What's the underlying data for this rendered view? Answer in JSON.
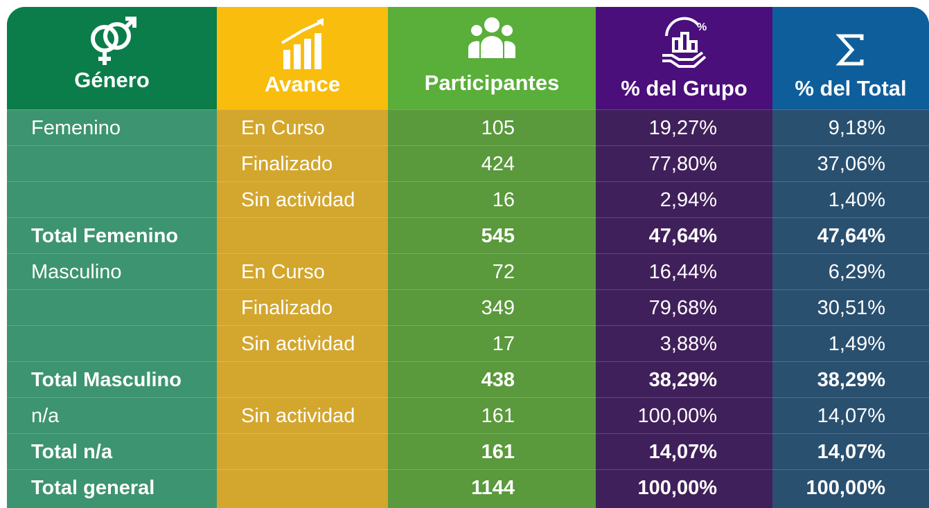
{
  "table": {
    "header": [
      "Género",
      "Avance",
      "Participantes",
      "% del Grupo",
      "% del Total"
    ],
    "rows": [
      {
        "genero": "Femenino",
        "avance": "En Curso",
        "participantes": 105,
        "grupo": "19,27%",
        "total": "9,18%"
      },
      {
        "avance": "Finalizado",
        "participantes": 424,
        "grupo": "77,80%",
        "total": "37,06%"
      },
      {
        "avance": "Sin actividad",
        "participantes": 16,
        "grupo": "2,94%",
        "total": "1,40%"
      },
      {
        "genero": "Total Femenino",
        "participantes": 545,
        "grupo": "47,64%",
        "total": "47,64%"
      },
      {
        "genero": "Masculino",
        "avance": "En Curso",
        "participantes": 72,
        "grupo": "16,44%",
        "total": "6,29%"
      },
      {
        "avance": "Finalizado",
        "participantes": 349,
        "grupo": "79,68%",
        "total": "30,51%"
      },
      {
        "avance": "Sin actividad",
        "participantes": 17,
        "grupo": "3,88%",
        "total": "1,49%"
      },
      {
        "genero": "Total Masculino",
        "participantes": 438,
        "grupo": "38,29%",
        "total": "38,29%"
      },
      {
        "genero": "n/a",
        "avance": "Sin actividad",
        "participantes": 161,
        "grupo": "100,00%",
        "total": "14,07%"
      },
      {
        "genero": "Total n/a",
        "participantes": 161,
        "grupo": "14,07%",
        "total": "14,07%"
      },
      {
        "genero": "Total general",
        "participantes": 1144,
        "grupo": "100,00%",
        "total": "100,00%"
      }
    ]
  }
}
